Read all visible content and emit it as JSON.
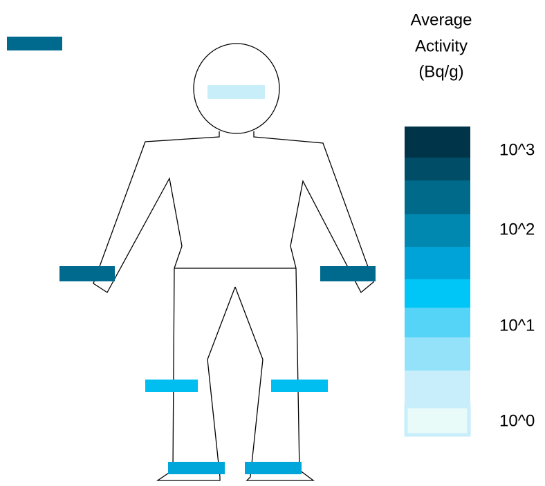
{
  "legend": {
    "title": [
      "Average",
      "Activity",
      "(Bq/g)"
    ],
    "labels": [
      "10^3",
      "10^2",
      "10^1",
      "10^0"
    ]
  }
}
